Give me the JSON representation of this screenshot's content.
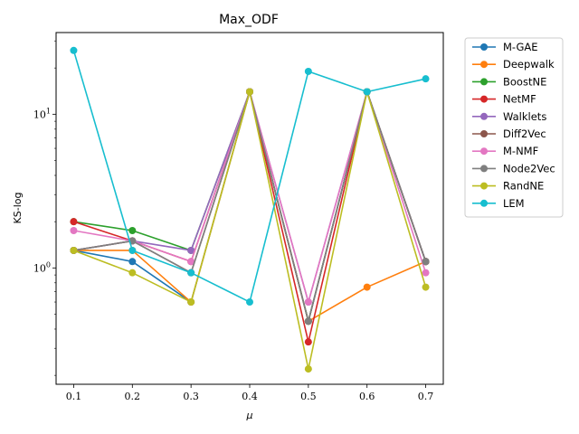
{
  "chart_data": {
    "type": "line",
    "title": "Max_ODF",
    "xlabel": "μ",
    "ylabel": "KS-log",
    "yscale": "log",
    "xlim": [
      0.07,
      0.73
    ],
    "ylim": [
      0.175,
      34
    ],
    "x": [
      0.1,
      0.2,
      0.3,
      0.4,
      0.5,
      0.6,
      0.7
    ],
    "x_tick_labels": [
      "0.1",
      "0.2",
      "0.3",
      "0.4",
      "0.5",
      "0.6",
      "0.7"
    ],
    "y_major_ticks": [
      {
        "value": 1,
        "base": "10",
        "exp": "0"
      },
      {
        "value": 10,
        "base": "10",
        "exp": "1"
      }
    ],
    "legend_position": "outside-upper-right",
    "grid": false,
    "series": [
      {
        "name": "M-GAE",
        "color": "#1f77b4",
        "values": [
          1.3,
          1.1,
          0.6,
          14,
          0.45,
          14,
          1.1
        ]
      },
      {
        "name": "Deepwalk",
        "color": "#ff7f0e",
        "values": [
          1.3,
          1.3,
          0.6,
          14,
          0.45,
          0.75,
          1.1
        ]
      },
      {
        "name": "BoostNE",
        "color": "#2ca02c",
        "values": [
          2.0,
          1.75,
          1.3,
          14,
          0.45,
          14,
          1.1
        ]
      },
      {
        "name": "NetMF",
        "color": "#d62728",
        "values": [
          2.0,
          1.5,
          1.1,
          14,
          0.33,
          14,
          1.1
        ]
      },
      {
        "name": "Walklets",
        "color": "#9467bd",
        "values": [
          1.3,
          1.5,
          1.3,
          14,
          0.6,
          14,
          1.1
        ]
      },
      {
        "name": "Diff2Vec",
        "color": "#8c564b",
        "values": [
          1.3,
          1.5,
          0.93,
          14,
          0.45,
          14,
          1.1
        ]
      },
      {
        "name": "M-NMF",
        "color": "#e377c2",
        "values": [
          1.75,
          1.5,
          1.1,
          14,
          0.6,
          14,
          0.93
        ]
      },
      {
        "name": "Node2Vec",
        "color": "#7f7f7f",
        "values": [
          1.3,
          1.5,
          0.93,
          14,
          0.45,
          14,
          1.1
        ]
      },
      {
        "name": "RandNE",
        "color": "#bcbd22",
        "values": [
          1.3,
          0.93,
          0.6,
          14,
          0.22,
          14,
          0.75
        ]
      },
      {
        "name": "LEM",
        "color": "#17becf",
        "values": [
          26,
          1.3,
          0.93,
          0.6,
          19,
          14,
          17
        ]
      }
    ]
  }
}
